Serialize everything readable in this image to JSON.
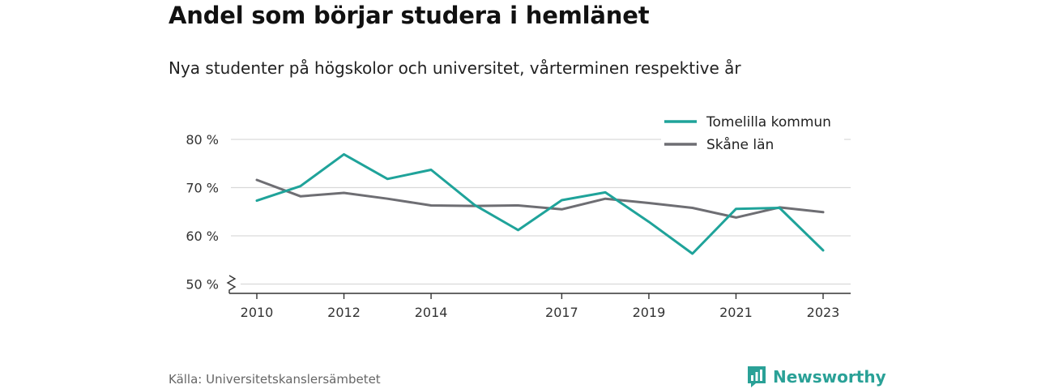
{
  "header": {
    "title": "Andel som börjar studera i hemlänet",
    "subtitle": "Nya studenter på högskolor och universitet, vårterminen respektive år"
  },
  "footer": {
    "source": "Källa: Universitetskanslersämbetet",
    "brand": "Newsworthy"
  },
  "colors": {
    "tomelilla": "#1fa39a",
    "skane": "#6e6e73",
    "grid": "#d9d9d9",
    "axis": "#333333",
    "brand": "#2aa197"
  },
  "chart_data": {
    "type": "line",
    "title": "Andel som börjar studera i hemlänet",
    "subtitle": "Nya studenter på högskolor och universitet, vårterminen respektive år",
    "x": [
      2010,
      2011,
      2012,
      2013,
      2014,
      2015,
      2016,
      2017,
      2018,
      2019,
      2020,
      2021,
      2022,
      2023
    ],
    "xticks": [
      2010,
      2012,
      2014,
      2017,
      2019,
      2021,
      2023
    ],
    "xtick_labels": [
      "2010",
      "2012",
      "2014",
      "2017",
      "2019",
      "2021",
      "2023"
    ],
    "yticks": [
      50,
      60,
      70,
      80
    ],
    "ytick_labels": [
      "50 %",
      "60 %",
      "70 %",
      "80 %"
    ],
    "ylim": [
      50,
      81
    ],
    "y_axis_break": true,
    "grid": true,
    "legend_position": "top-right",
    "series": [
      {
        "name": "Tomelilla kommun",
        "color": "#1fa39a",
        "values": [
          67.3,
          70.3,
          76.9,
          71.8,
          73.7,
          66.4,
          61.2,
          67.4,
          69.0,
          62.9,
          56.3,
          65.6,
          65.8,
          57.0
        ]
      },
      {
        "name": "Skåne län",
        "color": "#6e6e73",
        "values": [
          71.6,
          68.2,
          68.9,
          67.7,
          66.3,
          66.2,
          66.3,
          65.5,
          67.7,
          66.8,
          65.8,
          63.8,
          65.9,
          64.9
        ]
      }
    ]
  }
}
